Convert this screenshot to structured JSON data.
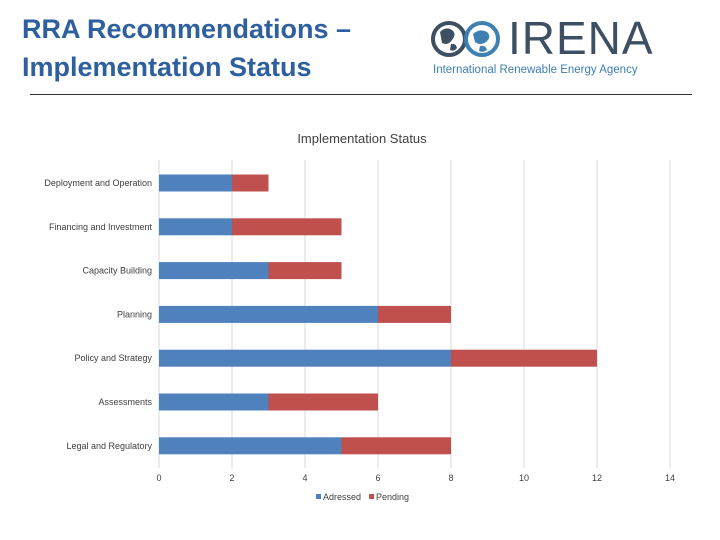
{
  "slide": {
    "title_line1": "RRA Recommendations –",
    "title_line2": "Implementation Status"
  },
  "logo": {
    "wordmark": "IRENA",
    "tagline": "International Renewable Energy Agency"
  },
  "chart_data": {
    "type": "bar",
    "orientation": "horizontal",
    "stacked": true,
    "title": "Implementation Status",
    "categories": [
      "Deployment and Operation",
      "Financing and Investment",
      "Capacity Building",
      "Planning",
      "Policy and Strategy",
      "Assessments",
      "Legal and Regulatory"
    ],
    "series": [
      {
        "name": "Adressed",
        "color": "#4F81BD",
        "values": [
          2,
          2,
          3,
          6,
          8,
          3,
          5
        ]
      },
      {
        "name": "Pending",
        "color": "#C0504D",
        "values": [
          1,
          3,
          2,
          2,
          4,
          3,
          3
        ]
      }
    ],
    "xlim": [
      0,
      14
    ],
    "xticks": [
      0,
      2,
      4,
      6,
      8,
      10,
      12,
      14
    ],
    "grid": true,
    "legend_position": "bottom"
  }
}
